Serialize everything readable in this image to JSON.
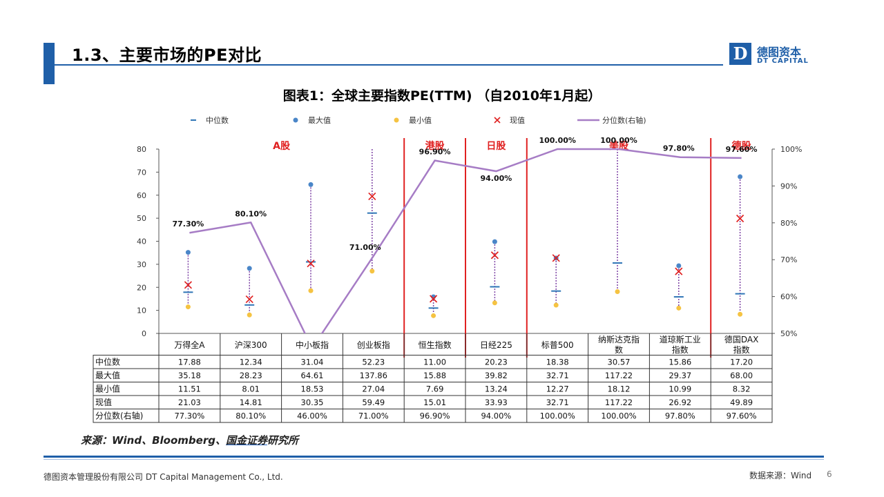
{
  "header": {
    "title": "1.3、主要市场的PE对比"
  },
  "logo": {
    "mark": "D",
    "name_cn": "德图资本",
    "name_en": "DT CAPITAL"
  },
  "chart_data": {
    "type": "table",
    "title": "图表1：全球主要指数PE(TTM) （自2010年1月起）",
    "legend": [
      "中位数",
      "最大值",
      "最小值",
      "现值",
      "分位数(右轴)"
    ],
    "legend_position": "top",
    "categories": [
      "万得全A",
      "沪深300",
      "中小板指",
      "创业板指",
      "恒生指数",
      "日经225",
      "标普500",
      "纳斯达克指数",
      "道琼斯工业指数",
      "德国DAX指数"
    ],
    "groups": [
      {
        "label": "A股",
        "start": 0,
        "end": 3
      },
      {
        "label": "港股",
        "start": 4,
        "end": 4
      },
      {
        "label": "日股",
        "start": 5,
        "end": 5
      },
      {
        "label": "美股",
        "start": 6,
        "end": 8
      },
      {
        "label": "德股",
        "start": 9,
        "end": 9
      }
    ],
    "series": [
      {
        "name": "中位数",
        "values": [
          17.88,
          12.34,
          31.04,
          52.23,
          11.0,
          20.23,
          18.38,
          30.57,
          15.86,
          17.2
        ],
        "display": [
          "17.88",
          "12.34",
          "31.04",
          "52.23",
          "11.00",
          "20.23",
          "18.38",
          "30.57",
          "15.86",
          "17.20"
        ]
      },
      {
        "name": "最大值",
        "values": [
          35.18,
          28.23,
          64.61,
          137.86,
          15.88,
          39.82,
          32.71,
          117.22,
          29.37,
          68.0
        ],
        "display": [
          "35.18",
          "28.23",
          "64.61",
          "137.86",
          "15.88",
          "39.82",
          "32.71",
          "117.22",
          "29.37",
          "68.00"
        ]
      },
      {
        "name": "最小值",
        "values": [
          11.51,
          8.01,
          18.53,
          27.04,
          7.69,
          13.24,
          12.27,
          18.12,
          10.99,
          8.32
        ],
        "display": [
          "11.51",
          "8.01",
          "18.53",
          "27.04",
          "7.69",
          "13.24",
          "12.27",
          "18.12",
          "10.99",
          "8.32"
        ]
      },
      {
        "name": "现值",
        "values": [
          21.03,
          14.81,
          30.35,
          59.49,
          15.01,
          33.93,
          32.71,
          117.22,
          26.92,
          49.89
        ],
        "display": [
          "21.03",
          "14.81",
          "30.35",
          "59.49",
          "15.01",
          "33.93",
          "32.71",
          "117.22",
          "26.92",
          "49.89"
        ]
      },
      {
        "name": "分位数(右轴)",
        "axis": "right",
        "values": [
          77.3,
          80.1,
          46.0,
          71.0,
          96.9,
          94.0,
          100.0,
          100.0,
          97.8,
          97.6
        ],
        "display": [
          "77.30%",
          "80.10%",
          "46.00%",
          "71.00%",
          "96.90%",
          "94.00%",
          "100.00%",
          "100.00%",
          "97.80%",
          "97.60%"
        ]
      }
    ],
    "point_labels": [
      "77.30%",
      "80.10%",
      "",
      "71.00%",
      "96.90%",
      "94.00%",
      "100.00%",
      "100.00%",
      "97.80%",
      "97.60%"
    ],
    "ylim": [
      0,
      80
    ],
    "yticks": [
      "0",
      "10",
      "20",
      "30",
      "40",
      "50",
      "60",
      "70",
      "80"
    ],
    "y2lim": [
      50,
      100
    ],
    "y2ticks": [
      "50%",
      "60%",
      "70%",
      "80%",
      "90%",
      "100%"
    ],
    "colors": {
      "median": "#2e75b6",
      "max": "#4a86c8",
      "min": "#f5c342",
      "current": "#e02020",
      "percentile": "#a67cc5",
      "range": "#7b3fa3",
      "group_divider": "#e02020",
      "group_label": "#e02020"
    }
  },
  "source_note": {
    "prefix": "来源：Wind、Bloomberg、",
    "link": "国金证券",
    "suffix": "研究所"
  },
  "footer": {
    "company": "德图资本管理股份有限公司 DT Capital Management Co., Ltd.",
    "source": "数据来源：Wind",
    "page": "6"
  }
}
